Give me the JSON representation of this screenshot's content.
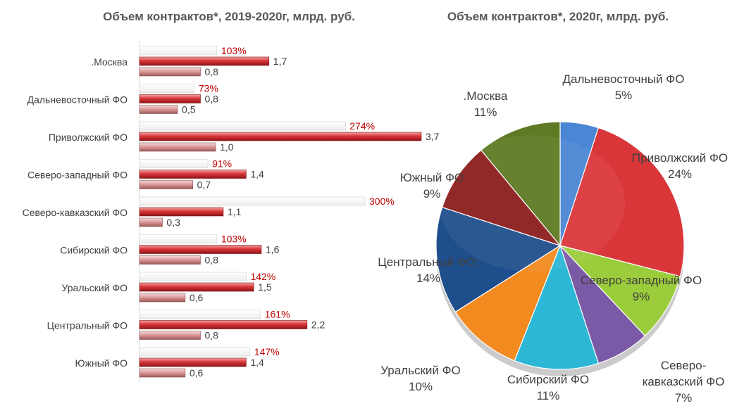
{
  "chart_data": [
    {
      "type": "bar",
      "orientation": "horizontal",
      "title": "Объем контрактов*, 2019-2020г, млрд. руб.",
      "categories": [
        ".Москва",
        "Дальневосточный ФО",
        "Приволжский ФО",
        "Северо-западный ФО",
        "Северо-кавказский ФО",
        "Сибирский ФО",
        "Уральский ФО",
        "Центральный ФО",
        "Южный ФО"
      ],
      "series": [
        {
          "values": [
            103,
            73,
            274,
            91,
            300,
            103,
            142,
            161,
            147
          ],
          "labels": [
            "103%",
            "73%",
            "274%",
            "91%",
            "300%",
            "103%",
            "142%",
            "161%",
            "147%"
          ],
          "color": "#ffffff"
        },
        {
          "values": [
            1.7,
            0.8,
            3.7,
            1.4,
            1.1,
            1.6,
            1.5,
            2.2,
            1.4
          ],
          "labels": [
            "1,7",
            "0,8",
            "3,7",
            "1,4",
            "1,1",
            "1,6",
            "1,5",
            "2,2",
            "1,4"
          ],
          "color": "#d9363a"
        },
        {
          "values": [
            0.8,
            0.5,
            1.0,
            0.7,
            0.3,
            0.8,
            0.6,
            0.8,
            0.6
          ],
          "labels": [
            "0,8",
            "0,5",
            "1,0",
            "0,7",
            "0,3",
            "0,8",
            "0,6",
            "0,8",
            "0,6"
          ],
          "color": "#d99594"
        }
      ],
      "colors": {
        "percent_text": "#c00000",
        "text": "#404040"
      }
    },
    {
      "type": "pie",
      "title": "Объем контрактов*, 2020г, млрд. руб.",
      "slices": [
        {
          "label": "Дальневосточный ФО",
          "pct_label": "5%",
          "value": 5,
          "color": "#4a86d4"
        },
        {
          "label": "Приволжский ФО",
          "pct_label": "24%",
          "value": 24,
          "color": "#d9363a"
        },
        {
          "label": "Северо-западный ФО",
          "pct_label": "9%",
          "value": 9,
          "color": "#9bcc3b"
        },
        {
          "label": "Северо-\nкавказский ФО",
          "pct_label": "7%",
          "value": 7,
          "color": "#7a5aa6"
        },
        {
          "label": "Сибирский ФО",
          "pct_label": "11%",
          "value": 11,
          "color": "#2cb7d6"
        },
        {
          "label": "Уральский ФО",
          "pct_label": "10%",
          "value": 10,
          "color": "#f28a1f"
        },
        {
          "label": "Центральный ФО;",
          "pct_label": "14%",
          "value": 14,
          "color": "#1f4e8c"
        },
        {
          "label": "Южный ФО",
          "pct_label": "9%",
          "value": 9,
          "color": "#8c1c1c"
        },
        {
          "label": ".Москва",
          "pct_label": "11%",
          "value": 11,
          "color": "#5f7a23"
        }
      ]
    }
  ]
}
